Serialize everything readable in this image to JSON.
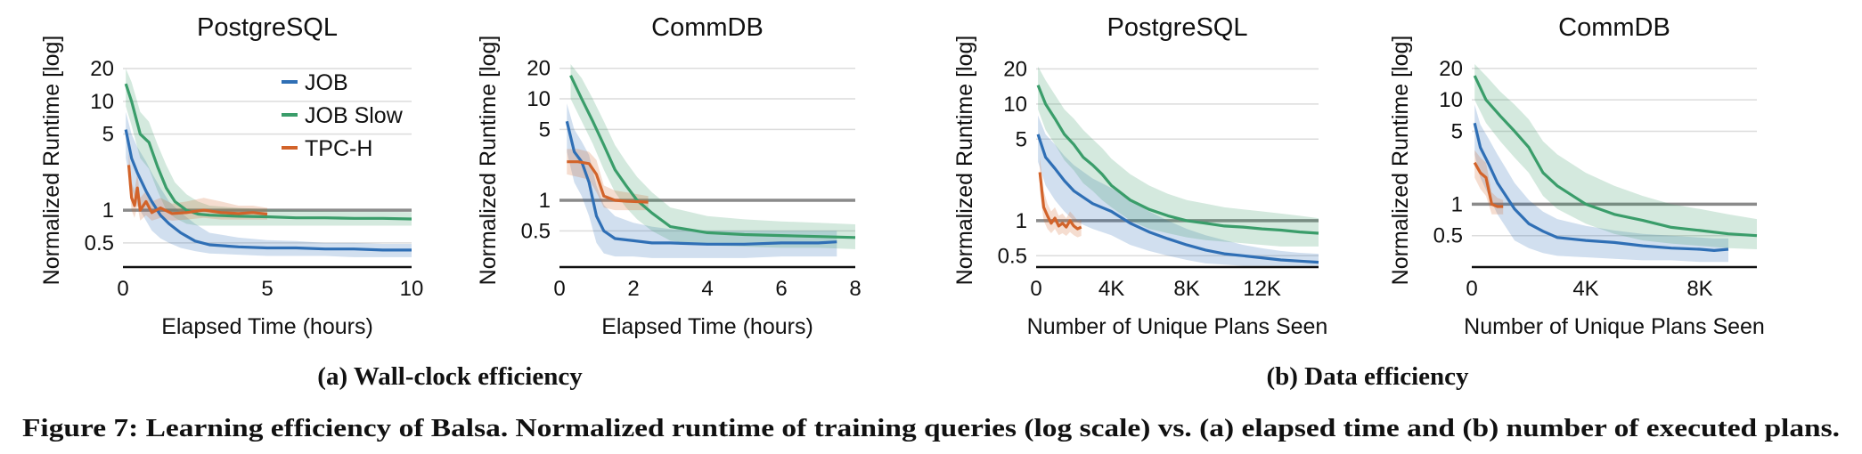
{
  "colors": {
    "JOB": "#2f6fb5",
    "JOB Slow": "#3a9d6a",
    "TPC-H": "#d2632a",
    "reference": "#8a8a8a",
    "grid": "#dcdcdc"
  },
  "subcaptions": [
    "(a) Wall-clock efficiency",
    "(b) Data efficiency"
  ],
  "caption": "Figure 7: Learning efficiency of Balsa. Normalized runtime of training queries (log scale) vs. (a) elapsed time and (b) number of executed plans.",
  "chart_data": [
    {
      "type": "line",
      "title": "PostgreSQL",
      "xlabel": "Elapsed Time (hours)",
      "ylabel": "Normalized Runtime [log]",
      "yscale": "log",
      "xlim": [
        0,
        10
      ],
      "ylim": [
        0.3,
        22
      ],
      "xticks": [
        0,
        5,
        10
      ],
      "xtick_labels": [
        "0",
        "5",
        "10"
      ],
      "yticks": [
        0.5,
        1,
        5,
        10,
        20
      ],
      "ytick_labels": [
        "0.5",
        "1",
        "5",
        "10",
        "20"
      ],
      "reference_y": 1,
      "grid": true,
      "legend": {
        "entries": [
          "JOB",
          "JOB Slow",
          "TPC-H"
        ],
        "position": "top-right"
      },
      "series": [
        {
          "name": "JOB",
          "x": [
            0.1,
            0.3,
            0.5,
            0.8,
            1.0,
            1.3,
            1.6,
            2.0,
            2.5,
            3.0,
            4.0,
            5.0,
            6.0,
            7.0,
            8.0,
            9.0,
            10.0
          ],
          "y": [
            5.5,
            3.0,
            2.2,
            1.5,
            1.2,
            0.9,
            0.75,
            0.62,
            0.52,
            0.48,
            0.46,
            0.45,
            0.45,
            0.44,
            0.44,
            0.43,
            0.43
          ],
          "band_low": [
            3.0,
            1.6,
            1.1,
            0.8,
            0.65,
            0.55,
            0.5,
            0.45,
            0.42,
            0.4,
            0.39,
            0.38,
            0.38,
            0.38,
            0.37,
            0.37,
            0.37
          ],
          "band_high": [
            8.0,
            5.0,
            3.8,
            2.8,
            2.2,
            1.6,
            1.2,
            0.95,
            0.75,
            0.62,
            0.56,
            0.53,
            0.52,
            0.5,
            0.5,
            0.49,
            0.49
          ]
        },
        {
          "name": "JOB Slow",
          "x": [
            0.1,
            0.3,
            0.6,
            0.9,
            1.2,
            1.5,
            1.8,
            2.2,
            2.6,
            3.0,
            4.0,
            5.0,
            6.0,
            7.0,
            8.0,
            9.0,
            10.0
          ],
          "y": [
            14.5,
            10.0,
            5.0,
            4.2,
            2.5,
            1.6,
            1.2,
            1.0,
            0.92,
            0.9,
            0.88,
            0.87,
            0.85,
            0.85,
            0.84,
            0.84,
            0.83
          ],
          "band_low": [
            9.0,
            6.0,
            3.0,
            2.4,
            1.5,
            1.0,
            0.85,
            0.75,
            0.72,
            0.72,
            0.72,
            0.72,
            0.72,
            0.72,
            0.72,
            0.72,
            0.72
          ],
          "band_high": [
            20.0,
            15.0,
            8.0,
            6.5,
            4.0,
            2.6,
            1.8,
            1.4,
            1.2,
            1.1,
            1.05,
            1.02,
            1.0,
            0.98,
            0.97,
            0.97,
            0.96
          ]
        },
        {
          "name": "TPC-H",
          "x": [
            0.2,
            0.3,
            0.4,
            0.5,
            0.6,
            0.8,
            1.0,
            1.3,
            1.7,
            2.2,
            2.8,
            3.4,
            4.0,
            4.5,
            5.0
          ],
          "y": [
            2.6,
            1.3,
            1.1,
            1.6,
            1.0,
            1.2,
            0.95,
            1.05,
            0.93,
            0.95,
            1.0,
            0.95,
            0.93,
            0.95,
            0.92
          ],
          "band_low": [
            1.8,
            1.0,
            0.85,
            1.1,
            0.8,
            0.9,
            0.8,
            0.85,
            0.8,
            0.82,
            0.85,
            0.82,
            0.82,
            0.82,
            0.82
          ],
          "band_high": [
            3.5,
            1.8,
            1.5,
            2.2,
            1.3,
            1.5,
            1.2,
            1.3,
            1.15,
            1.2,
            1.3,
            1.2,
            1.1,
            1.1,
            1.05
          ]
        }
      ]
    },
    {
      "type": "line",
      "title": "CommDB",
      "xlabel": "Elapsed Time (hours)",
      "ylabel": "Normalized Runtime [log]",
      "yscale": "log",
      "xlim": [
        0,
        8
      ],
      "ylim": [
        0.22,
        22
      ],
      "xticks": [
        0,
        2,
        4,
        6,
        8
      ],
      "xtick_labels": [
        "0",
        "2",
        "4",
        "6",
        "8"
      ],
      "yticks": [
        0.5,
        1,
        5,
        10,
        20
      ],
      "ytick_labels": [
        "0.5",
        "1",
        "5",
        "10",
        "20"
      ],
      "reference_y": 1,
      "grid": true,
      "series": [
        {
          "name": "JOB",
          "x": [
            0.2,
            0.4,
            0.6,
            0.8,
            1.0,
            1.2,
            1.5,
            2.0,
            2.5,
            3.0,
            4.0,
            5.0,
            6.0,
            7.0,
            7.5
          ],
          "y": [
            6.0,
            3.0,
            2.4,
            1.5,
            0.7,
            0.5,
            0.42,
            0.4,
            0.38,
            0.38,
            0.37,
            0.37,
            0.38,
            0.38,
            0.39
          ],
          "band_low": [
            3.0,
            1.5,
            1.1,
            0.7,
            0.38,
            0.3,
            0.28,
            0.28,
            0.27,
            0.27,
            0.27,
            0.27,
            0.28,
            0.28,
            0.28
          ],
          "band_high": [
            9.0,
            5.0,
            3.8,
            2.8,
            1.4,
            0.9,
            0.7,
            0.6,
            0.55,
            0.52,
            0.5,
            0.5,
            0.5,
            0.5,
            0.5
          ]
        },
        {
          "name": "JOB Slow",
          "x": [
            0.3,
            0.6,
            0.9,
            1.2,
            1.5,
            1.8,
            2.1,
            2.5,
            3.0,
            4.0,
            5.0,
            6.0,
            7.0,
            8.0
          ],
          "y": [
            17.0,
            10.0,
            6.0,
            3.5,
            2.0,
            1.4,
            1.0,
            0.75,
            0.55,
            0.48,
            0.46,
            0.45,
            0.44,
            0.43
          ],
          "band_low": [
            10.0,
            6.0,
            3.6,
            2.0,
            1.2,
            0.85,
            0.65,
            0.5,
            0.4,
            0.36,
            0.35,
            0.34,
            0.34,
            0.33
          ],
          "band_high": [
            22.0,
            16.0,
            10.0,
            6.0,
            3.5,
            2.4,
            1.7,
            1.2,
            0.85,
            0.7,
            0.65,
            0.62,
            0.6,
            0.58
          ]
        },
        {
          "name": "TPC-H",
          "x": [
            0.2,
            0.5,
            0.8,
            1.0,
            1.2,
            1.5,
            1.8,
            2.1,
            2.4
          ],
          "y": [
            2.4,
            2.4,
            2.3,
            1.8,
            1.1,
            1.0,
            0.98,
            0.97,
            0.96
          ],
          "band_low": [
            1.8,
            1.7,
            1.6,
            1.2,
            0.85,
            0.8,
            0.8,
            0.8,
            0.8
          ],
          "band_high": [
            3.2,
            3.2,
            3.0,
            2.5,
            1.4,
            1.25,
            1.2,
            1.15,
            1.1
          ]
        }
      ]
    },
    {
      "type": "line",
      "title": "PostgreSQL",
      "xlabel": "Number of Unique Plans Seen",
      "ylabel": "Normalized Runtime [log]",
      "yscale": "log",
      "xlim": [
        0,
        15000
      ],
      "ylim": [
        0.4,
        22
      ],
      "xticks": [
        0,
        4000,
        8000,
        12000
      ],
      "xtick_labels": [
        "0",
        "4K",
        "8K",
        "12K"
      ],
      "yticks": [
        0.5,
        1,
        5,
        10,
        20
      ],
      "ytick_labels": [
        "0.5",
        "1",
        "5",
        "10",
        "20"
      ],
      "reference_y": 1,
      "grid": true,
      "series": [
        {
          "name": "JOB",
          "x": [
            100,
            500,
            1000,
            1500,
            2000,
            3000,
            4000,
            5000,
            6000,
            7000,
            8000,
            9000,
            10000,
            11000,
            12000,
            13000,
            14000,
            15000
          ],
          "y": [
            5.5,
            3.5,
            2.8,
            2.2,
            1.8,
            1.4,
            1.2,
            0.95,
            0.8,
            0.7,
            0.62,
            0.56,
            0.52,
            0.5,
            0.48,
            0.46,
            0.45,
            0.44
          ],
          "band_low": [
            3.2,
            2.0,
            1.5,
            1.2,
            1.0,
            0.85,
            0.75,
            0.62,
            0.55,
            0.5,
            0.46,
            0.43,
            0.42,
            0.41,
            0.41,
            0.41,
            0.41,
            0.41
          ],
          "band_high": [
            8.0,
            5.5,
            4.5,
            3.6,
            3.0,
            2.3,
            1.9,
            1.5,
            1.2,
            1.0,
            0.85,
            0.75,
            0.68,
            0.62,
            0.58,
            0.55,
            0.53,
            0.52
          ]
        },
        {
          "name": "JOB Slow",
          "x": [
            100,
            500,
            1000,
            1500,
            2000,
            2500,
            3000,
            3500,
            4000,
            5000,
            6000,
            7000,
            8000,
            9000,
            10000,
            11000,
            12000,
            13000,
            14000,
            15000
          ],
          "y": [
            14.5,
            10.0,
            7.5,
            5.5,
            4.5,
            3.5,
            3.0,
            2.5,
            2.0,
            1.5,
            1.25,
            1.1,
            1.0,
            0.95,
            0.9,
            0.88,
            0.85,
            0.83,
            0.8,
            0.78
          ],
          "band_low": [
            9.0,
            6.0,
            4.5,
            3.3,
            2.7,
            2.1,
            1.8,
            1.5,
            1.3,
            1.0,
            0.85,
            0.78,
            0.72,
            0.68,
            0.66,
            0.64,
            0.62,
            0.6,
            0.6,
            0.6
          ],
          "band_high": [
            21.0,
            16.0,
            12.0,
            9.0,
            7.5,
            6.0,
            5.0,
            4.2,
            3.4,
            2.5,
            2.0,
            1.7,
            1.5,
            1.4,
            1.3,
            1.25,
            1.2,
            1.15,
            1.1,
            1.05
          ]
        },
        {
          "name": "TPC-H",
          "x": [
            200,
            400,
            600,
            800,
            1000,
            1200,
            1400,
            1600,
            1800,
            2000,
            2200,
            2400
          ],
          "y": [
            2.6,
            1.3,
            1.1,
            0.95,
            1.05,
            0.9,
            0.95,
            0.88,
            1.0,
            0.9,
            0.85,
            0.88
          ],
          "band_low": [
            1.8,
            1.0,
            0.85,
            0.78,
            0.85,
            0.75,
            0.78,
            0.74,
            0.8,
            0.75,
            0.72,
            0.74
          ],
          "band_high": [
            3.5,
            1.8,
            1.4,
            1.2,
            1.3,
            1.1,
            1.15,
            1.05,
            1.2,
            1.1,
            1.0,
            1.02
          ]
        }
      ]
    },
    {
      "type": "line",
      "title": "CommDB",
      "xlabel": "Number of Unique Plans Seen",
      "ylabel": "Normalized Runtime [log]",
      "yscale": "log",
      "xlim": [
        0,
        10000
      ],
      "ylim": [
        0.25,
        22
      ],
      "xticks": [
        0,
        4000,
        8000
      ],
      "xtick_labels": [
        "0",
        "4K",
        "8K"
      ],
      "yticks": [
        0.5,
        1,
        5,
        10,
        20
      ],
      "ytick_labels": [
        "0.5",
        "1",
        "5",
        "10",
        "20"
      ],
      "reference_y": 1,
      "grid": true,
      "series": [
        {
          "name": "JOB",
          "x": [
            100,
            300,
            600,
            900,
            1200,
            1500,
            2000,
            2500,
            3000,
            4000,
            5000,
            6000,
            7000,
            8000,
            8500,
            9000
          ],
          "y": [
            6.0,
            3.5,
            2.4,
            1.6,
            1.2,
            0.9,
            0.65,
            0.55,
            0.48,
            0.45,
            0.43,
            0.4,
            0.38,
            0.37,
            0.36,
            0.37
          ],
          "band_low": [
            3.0,
            1.8,
            1.2,
            0.8,
            0.6,
            0.45,
            0.38,
            0.34,
            0.32,
            0.31,
            0.3,
            0.29,
            0.29,
            0.28,
            0.28,
            0.28
          ],
          "band_high": [
            9.0,
            5.8,
            4.2,
            3.0,
            2.2,
            1.6,
            1.1,
            0.85,
            0.72,
            0.62,
            0.56,
            0.52,
            0.5,
            0.48,
            0.47,
            0.47
          ]
        },
        {
          "name": "JOB Slow",
          "x": [
            100,
            500,
            1000,
            1500,
            2000,
            2500,
            3000,
            4000,
            5000,
            6000,
            7000,
            8000,
            9000,
            10000
          ],
          "y": [
            17.0,
            10.0,
            7.0,
            5.0,
            3.5,
            2.0,
            1.5,
            1.0,
            0.8,
            0.7,
            0.6,
            0.56,
            0.52,
            0.5
          ],
          "band_low": [
            10.0,
            6.0,
            4.0,
            2.8,
            2.0,
            1.2,
            0.9,
            0.65,
            0.52,
            0.45,
            0.42,
            0.4,
            0.38,
            0.37
          ],
          "band_high": [
            22.0,
            17.0,
            12.0,
            9.0,
            6.5,
            4.0,
            3.0,
            2.0,
            1.5,
            1.2,
            1.0,
            0.9,
            0.8,
            0.72
          ]
        },
        {
          "name": "TPC-H",
          "x": [
            100,
            300,
            500,
            700,
            900,
            1100
          ],
          "y": [
            2.5,
            2.0,
            1.8,
            1.0,
            0.95,
            0.95
          ],
          "band_low": [
            1.8,
            1.4,
            1.2,
            0.8,
            0.8,
            0.8
          ],
          "band_high": [
            3.3,
            2.8,
            2.5,
            1.3,
            1.15,
            1.1
          ]
        }
      ]
    }
  ]
}
